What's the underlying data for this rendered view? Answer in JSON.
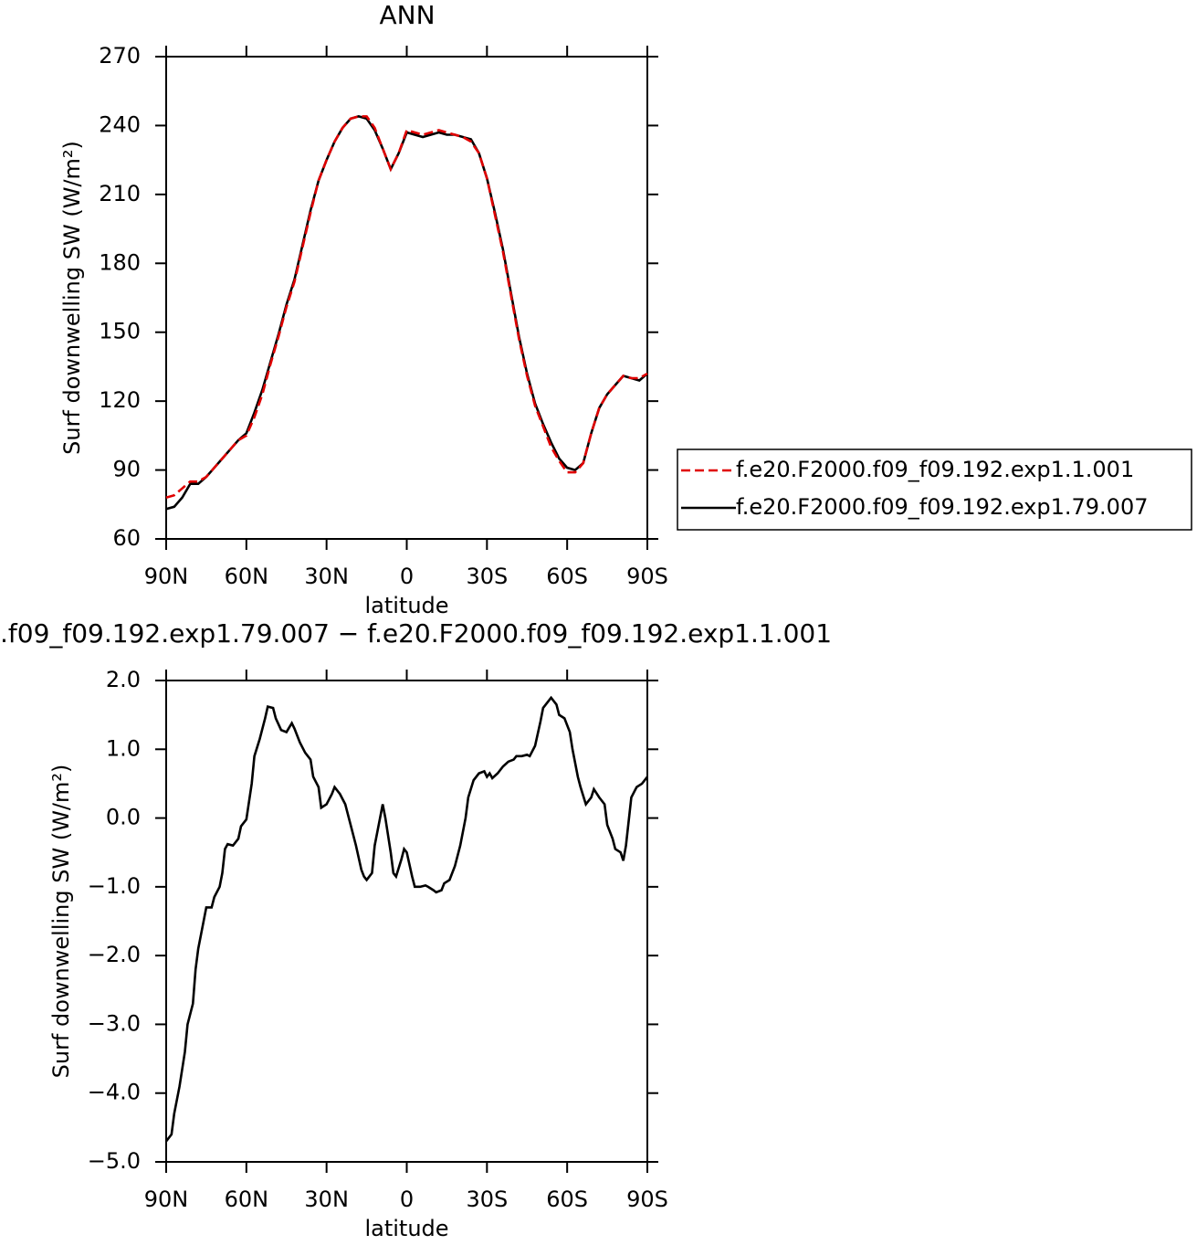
{
  "chart_data": [
    {
      "type": "line",
      "title": "ANN",
      "xlabel": "latitude",
      "ylabel": "Surf downwelling SW (W/m²)",
      "x": [
        90,
        87,
        84,
        81,
        78,
        75,
        72,
        69,
        66,
        63,
        60,
        57,
        54,
        51,
        48,
        45,
        42,
        39,
        36,
        33,
        30,
        27,
        24,
        21,
        18,
        15,
        12,
        9,
        6,
        3,
        0,
        -3,
        -6,
        -9,
        -12,
        -15,
        -18,
        -21,
        -24,
        -27,
        -30,
        -33,
        -36,
        -39,
        -42,
        -45,
        -48,
        -51,
        -54,
        -57,
        -60,
        -63,
        -66,
        -69,
        -72,
        -75,
        -78,
        -81,
        -84,
        -87,
        -90
      ],
      "series": [
        {
          "name": "f.e20.F2000.f09_f09.192.exp1.1.001",
          "color": "#e00000",
          "linestyle": "dashed",
          "values": [
            78,
            79,
            82,
            85,
            85,
            87,
            91,
            95,
            99,
            103,
            105,
            113,
            123,
            136,
            148,
            161,
            172,
            187,
            202,
            216,
            225,
            233,
            239,
            243,
            244,
            244,
            239,
            230,
            221,
            228,
            238,
            237,
            236,
            237,
            238,
            237,
            236,
            235,
            233,
            228,
            217,
            201,
            185,
            166,
            147,
            131,
            118,
            109,
            100,
            94,
            89,
            89,
            93,
            106,
            117,
            123,
            127,
            131,
            130,
            130,
            132
          ]
        },
        {
          "name": "f.e20.F2000.f09_f09.192.exp1.79.007",
          "color": "#000000",
          "linestyle": "solid",
          "values": [
            73,
            74,
            78,
            84,
            84,
            87,
            91,
            95,
            99,
            103,
            106,
            115,
            125,
            137,
            149,
            162,
            173,
            188,
            203,
            216,
            225,
            233,
            239,
            243,
            244,
            243,
            238,
            230,
            221,
            228,
            237,
            236,
            235,
            236,
            237,
            236,
            236,
            235,
            234,
            228,
            217,
            202,
            186,
            167,
            148,
            132,
            119,
            110,
            102,
            95,
            91,
            90,
            93,
            106,
            117,
            123,
            127,
            131,
            130,
            129,
            132
          ]
        }
      ],
      "xlim": [
        90,
        -90
      ],
      "xticks": [
        {
          "value": 90,
          "label": "90N"
        },
        {
          "value": 60,
          "label": "60N"
        },
        {
          "value": 30,
          "label": "30N"
        },
        0,
        {
          "value": -30,
          "label": "30S"
        },
        {
          "value": -60,
          "label": "60S"
        },
        {
          "value": -90,
          "label": "90S"
        }
      ],
      "ylim": [
        60,
        270
      ],
      "yticks": [
        60,
        90,
        120,
        150,
        180,
        210,
        240,
        270
      ],
      "legend": "right"
    },
    {
      "type": "line",
      "title": ".f09_f09.192.exp1.79.007 − f.e20.F2000.f09_f09.192.exp1.1.001",
      "xlabel": "latitude",
      "ylabel": "Surf downwelling SW (W/m²)",
      "x": [
        90,
        88,
        87,
        85,
        83,
        82,
        80,
        79,
        78,
        76,
        75,
        73,
        72,
        70,
        69,
        68,
        67,
        65,
        63,
        62,
        60,
        58,
        57,
        55,
        53,
        52,
        50,
        49,
        47,
        45,
        43,
        42,
        40,
        38,
        36,
        35,
        33,
        32,
        30,
        28,
        27,
        25,
        23,
        21,
        19,
        17,
        16,
        15,
        13,
        12,
        10,
        9,
        8,
        6,
        5,
        4,
        2,
        1,
        0,
        -2,
        -3,
        -5,
        -7,
        -8,
        -10,
        -11,
        -13,
        -14,
        -16,
        -18,
        -20,
        -22,
        -23,
        -25,
        -27,
        -29,
        -30,
        -31,
        -32,
        -34,
        -36,
        -38,
        -40,
        -41,
        -43,
        -45,
        -46,
        -48,
        -50,
        -51,
        -53,
        -54,
        -56,
        -57,
        -59,
        -61,
        -62,
        -64,
        -65,
        -67,
        -69,
        -70,
        -72,
        -74,
        -75,
        -77,
        -78,
        -80,
        -81,
        -82,
        -84,
        -86,
        -88,
        -90
      ],
      "values": [
        -4.7,
        -4.6,
        -4.3,
        -3.9,
        -3.4,
        -3.0,
        -2.7,
        -2.2,
        -1.9,
        -1.5,
        -1.3,
        -1.3,
        -1.15,
        -1.0,
        -0.8,
        -0.45,
        -0.38,
        -0.4,
        -0.3,
        -0.12,
        -0.02,
        0.5,
        0.9,
        1.15,
        1.45,
        1.62,
        1.6,
        1.45,
        1.28,
        1.25,
        1.38,
        1.3,
        1.1,
        0.95,
        0.85,
        0.6,
        0.45,
        0.15,
        0.2,
        0.35,
        0.45,
        0.35,
        0.2,
        -0.1,
        -0.4,
        -0.75,
        -0.85,
        -0.9,
        -0.8,
        -0.4,
        0.0,
        0.2,
        0.0,
        -0.5,
        -0.8,
        -0.85,
        -0.6,
        -0.45,
        -0.5,
        -0.85,
        -1.0,
        -1.0,
        -0.98,
        -1.0,
        -1.05,
        -1.08,
        -1.05,
        -0.95,
        -0.9,
        -0.7,
        -0.4,
        0.0,
        0.3,
        0.55,
        0.65,
        0.68,
        0.6,
        0.65,
        0.58,
        0.65,
        0.75,
        0.82,
        0.85,
        0.9,
        0.9,
        0.92,
        0.9,
        1.05,
        1.4,
        1.6,
        1.7,
        1.75,
        1.65,
        1.5,
        1.45,
        1.25,
        1.0,
        0.6,
        0.45,
        0.2,
        0.3,
        0.42,
        0.3,
        0.2,
        -0.1,
        -0.3,
        -0.45,
        -0.5,
        -0.62,
        -0.4,
        0.3,
        0.45,
        0.5,
        0.6
      ],
      "color": "#000000",
      "xlim": [
        90,
        -90
      ],
      "xticks": [
        {
          "value": 90,
          "label": "90N"
        },
        {
          "value": 60,
          "label": "60N"
        },
        {
          "value": 30,
          "label": "30N"
        },
        0,
        {
          "value": -30,
          "label": "30S"
        },
        {
          "value": -60,
          "label": "60S"
        },
        {
          "value": -90,
          "label": "90S"
        }
      ],
      "ylim": [
        -5,
        2
      ],
      "yticks": [
        {
          "value": -5,
          "label": "−5.0"
        },
        {
          "value": -4,
          "label": "−4.0"
        },
        {
          "value": -3,
          "label": "−3.0"
        },
        {
          "value": -2,
          "label": "−2.0"
        },
        {
          "value": -1,
          "label": "−1.0"
        },
        {
          "value": 0,
          "label": "0.0"
        },
        {
          "value": 1,
          "label": "1.0"
        },
        {
          "value": 2,
          "label": "2.0"
        }
      ]
    }
  ]
}
